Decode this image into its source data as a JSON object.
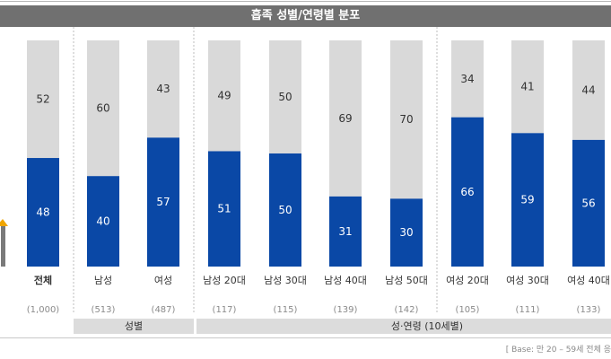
{
  "title": "흡족 성별/연령별 분포",
  "footnote": "[ Base: 만 20 – 59세 전체 응",
  "colors": {
    "top": "#d9d9d9",
    "bottom": "#0a48a6",
    "title_bg": "#707070",
    "group_bg": "#dcdcdc",
    "arrow": "#f0a500"
  },
  "chart_data": {
    "type": "bar",
    "stacked": true,
    "percent": true,
    "ylim": [
      0,
      100
    ],
    "categories": [
      "전체",
      "남성",
      "여성",
      "남성 20대",
      "남성 30대",
      "남성 40대",
      "남성 50대",
      "여성 20대",
      "여성 30대",
      "여성 40대"
    ],
    "bases": [
      "(1,000)",
      "(513)",
      "(487)",
      "(117)",
      "(115)",
      "(139)",
      "(142)",
      "(105)",
      "(111)",
      "(133)"
    ],
    "series": [
      {
        "values": [
          48,
          40,
          57,
          51,
          50,
          31,
          30,
          66,
          59,
          56
        ]
      },
      {
        "values": [
          52,
          60,
          43,
          49,
          50,
          69,
          70,
          34,
          41,
          44
        ]
      }
    ],
    "groups": [
      {
        "label": "성별",
        "categories": [
          "남성",
          "여성"
        ]
      },
      {
        "label": "성·연령 (10세별)",
        "categories": [
          "남성 20대",
          "남성 30대",
          "남성 40대",
          "남성 50대",
          "여성 20대",
          "여성 30대",
          "여성 40대"
        ]
      }
    ]
  }
}
